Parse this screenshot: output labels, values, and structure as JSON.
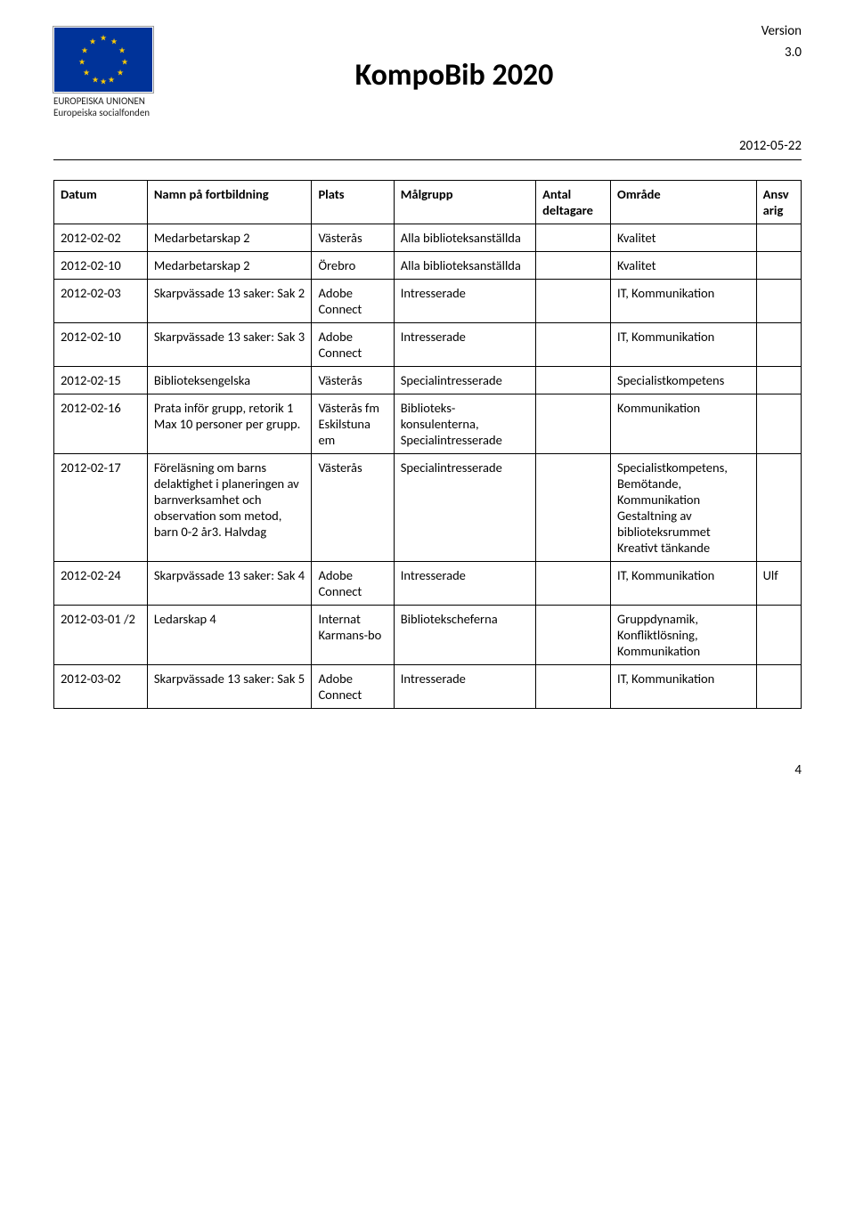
{
  "header": {
    "logo_line1": "EUROPEISKA UNIONEN",
    "logo_line2": "Europeiska socialfonden",
    "title": "KompoBib 2020",
    "version_label": "Version",
    "version_num": "3.0",
    "doc_date": "2012-05-22"
  },
  "table": {
    "columns": [
      "Datum",
      "Namn på fortbildning",
      "Plats",
      "Målgrupp",
      "Antal deltagare",
      "Område",
      "Ansvarig"
    ],
    "rows": [
      {
        "cells": [
          "2012-02-02",
          "Medarbetarskap 2",
          "Västerås",
          "Alla biblioteksanställda",
          "",
          "Kvalitet",
          ""
        ]
      },
      {
        "cells": [
          "2012-02-10",
          "Medarbetarskap 2",
          "Örebro",
          "Alla biblioteksanställda",
          "",
          "Kvalitet",
          ""
        ]
      },
      {
        "cells": [
          "2012-02-03",
          "Skarpvässade 13 saker: Sak 2",
          "Adobe Connect",
          "Intresserade",
          "",
          "IT, Kommunikation",
          ""
        ]
      },
      {
        "cells": [
          "2012-02-10",
          "Skarpvässade 13 saker: Sak 3",
          "Adobe Connect",
          "Intresserade",
          "",
          "IT, Kommunikation",
          ""
        ]
      },
      {
        "cells": [
          "2012-02-15",
          "Biblioteksengelska",
          "Västerås",
          "Specialintresserade",
          "",
          "Specialistkompetens",
          ""
        ]
      },
      {
        "cells": [
          "2012-02-16",
          "Prata inför grupp, retorik 1\nMax 10 personer per grupp.",
          "Västerås fm Eskilstuna em",
          "Biblioteks-konsulenterna, Specialintresserade",
          "",
          "Kommunikation",
          ""
        ]
      },
      {
        "cells": [
          "2012-02-17",
          "Föreläsning om barns delaktighet i planeringen av barnverksamhet och observation som metod, barn 0-2 år3. Halvdag",
          "Västerås",
          "Specialintresserade",
          "",
          "Specialistkompetens, Bemötande, Kommunikation Gestaltning av biblioteksrummet Kreativt tänkande",
          ""
        ]
      },
      {
        "cells": [
          "2012-02-24",
          "Skarpvässade 13 saker: Sak 4",
          "Adobe Connect",
          "Intresserade",
          "",
          "IT, Kommunikation",
          "Ulf"
        ]
      },
      {
        "cells": [
          "2012-03-01 /2",
          "Ledarskap 4",
          "Internat Karmans-bo",
          "Bibliotekscheferna",
          "",
          "Gruppdynamik, Konfliktlösning, Kommunikation",
          ""
        ]
      },
      {
        "cells": [
          "2012-03-02",
          "Skarpvässade 13 saker: Sak 5",
          "Adobe Connect",
          "Intresserade",
          "",
          "IT, Kommunikation",
          ""
        ]
      }
    ]
  },
  "page_number": "4"
}
